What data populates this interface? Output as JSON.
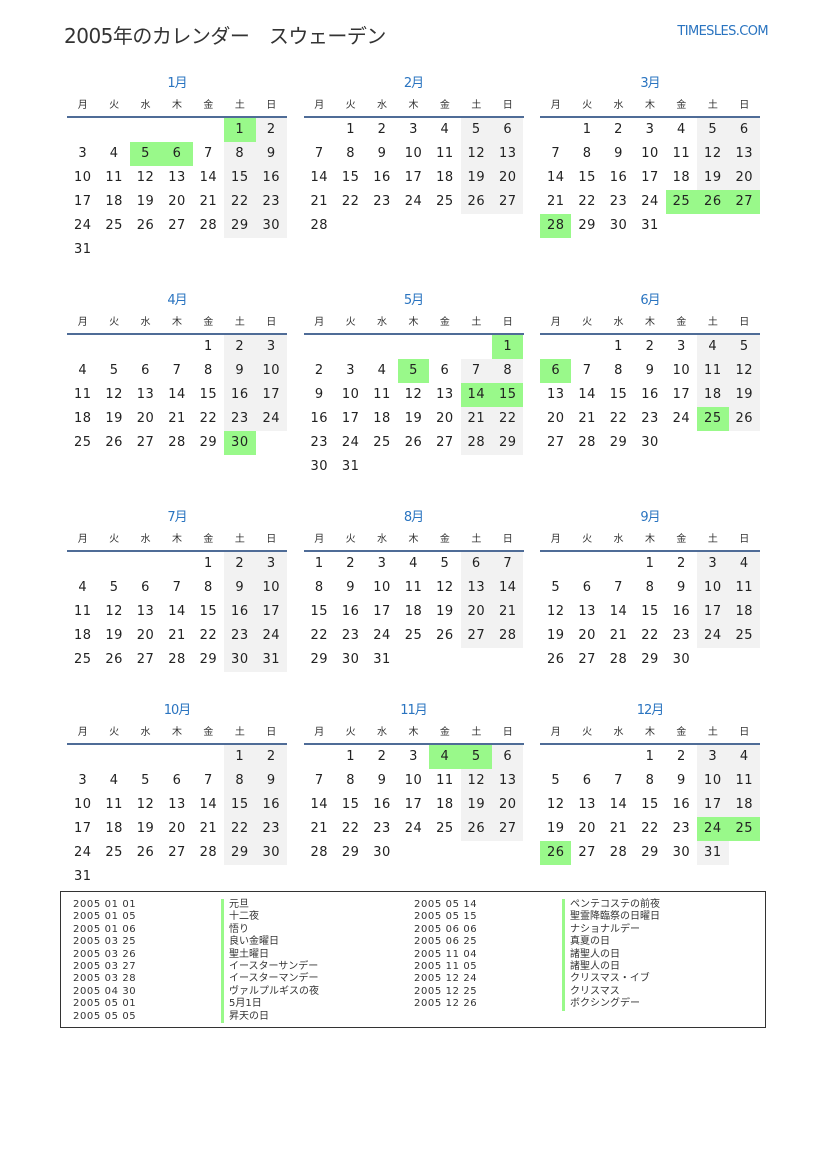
{
  "header": {
    "title": "2005年のカレンダー　スウェーデン",
    "brand": "TIMESLES.COM"
  },
  "year": 2005,
  "weekdays": [
    "月",
    "火",
    "水",
    "木",
    "金",
    "土",
    "日"
  ],
  "months": [
    "1月",
    "2月",
    "3月",
    "4月",
    "5月",
    "6月",
    "7月",
    "8月",
    "9月",
    "10月",
    "11月",
    "12月"
  ],
  "colors": {
    "accent": "#2a74c0",
    "holiday": "#99f98a",
    "weekend": "#f2f2f2",
    "rule": "#4f6c97"
  },
  "holidays": [
    {
      "date": "2005 01 01",
      "name": "元旦"
    },
    {
      "date": "2005 01 05",
      "name": "十二夜"
    },
    {
      "date": "2005 01 06",
      "name": "悟り"
    },
    {
      "date": "2005 03 25",
      "name": "良い金曜日"
    },
    {
      "date": "2005 03 26",
      "name": "聖土曜日"
    },
    {
      "date": "2005 03 27",
      "name": "イースターサンデー"
    },
    {
      "date": "2005 03 28",
      "name": "イースターマンデー"
    },
    {
      "date": "2005 04 30",
      "name": "ヴァルプルギスの夜"
    },
    {
      "date": "2005 05 01",
      "name": "5月1日"
    },
    {
      "date": "2005 05 05",
      "name": "昇天の日"
    },
    {
      "date": "2005 05 14",
      "name": "ペンテコステの前夜"
    },
    {
      "date": "2005 05 15",
      "name": "聖霊降臨祭の日曜日"
    },
    {
      "date": "2005 06 06",
      "name": "ナショナルデー"
    },
    {
      "date": "2005 06 25",
      "name": "真夏の日"
    },
    {
      "date": "2005 11 04",
      "name": "諸聖人の日"
    },
    {
      "date": "2005 11 05",
      "name": "諸聖人の日"
    },
    {
      "date": "2005 12 24",
      "name": "クリスマス・イブ"
    },
    {
      "date": "2005 12 25",
      "name": "クリスマス"
    },
    {
      "date": "2005 12 26",
      "name": "ボクシングデー"
    }
  ]
}
